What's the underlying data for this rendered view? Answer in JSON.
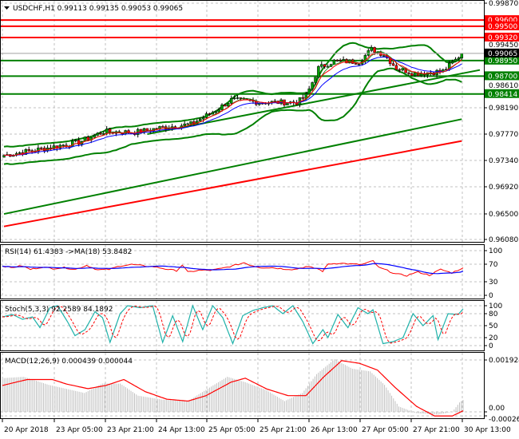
{
  "header": {
    "symbol_line": "USDCHF,H1  0.99113 0.99135 0.99053 0.99065",
    "menu_icon": "triangle-down-icon"
  },
  "colors": {
    "bull": "#00a000",
    "bear": "#ff0000",
    "support": "#008000",
    "resistance": "#ff0000",
    "ma_fast": "#ff0000",
    "ma_slow": "#0000ff",
    "bands": "#008000",
    "stoch_main": "#20b2aa",
    "grid": "#c0c0c0",
    "hist": "#c0c0c0"
  },
  "price_axis": {
    "ticks": [
      "0.99870",
      "0.98190",
      "0.97770",
      "0.97340",
      "0.96920",
      "0.96500",
      "0.96080"
    ],
    "hidden_ticks": [
      "0.99450",
      "0.98610"
    ],
    "current_price": "0.99065"
  },
  "levels": [
    {
      "price": 0.996,
      "label": "0.99600",
      "type": "resistance"
    },
    {
      "price": 0.995,
      "label": "0.99500",
      "type": "resistance"
    },
    {
      "price": 0.9932,
      "label": "0.99320",
      "type": "resistance"
    },
    {
      "price": 0.9895,
      "label": "0.98950",
      "type": "support"
    },
    {
      "price": 0.987,
      "label": "0.98700",
      "type": "support"
    },
    {
      "price": 0.98414,
      "label": "0.98414",
      "type": "support"
    }
  ],
  "time_axis": [
    "20 Apr 2018",
    "23 Apr 05:00",
    "23 Apr 21:00",
    "24 Apr 13:00",
    "25 Apr 05:00",
    "25 Apr 21:00",
    "26 Apr 13:00",
    "27 Apr 05:00",
    "27 Apr 21:00",
    "30 Apr 13:00"
  ],
  "chart_data": [
    {
      "type": "candlestick",
      "title": "USDCHF,H1",
      "bars": 148,
      "ylim": [
        0.9608,
        0.9987
      ],
      "close_anchors": [
        [
          0,
          0.9743
        ],
        [
          14,
          0.9755
        ],
        [
          24,
          0.9764
        ],
        [
          32,
          0.9781
        ],
        [
          42,
          0.978
        ],
        [
          50,
          0.9787
        ],
        [
          60,
          0.9793
        ],
        [
          68,
          0.9815
        ],
        [
          73,
          0.9832
        ],
        [
          83,
          0.9828
        ],
        [
          94,
          0.9828
        ],
        [
          97,
          0.9838
        ],
        [
          99,
          0.986
        ],
        [
          101,
          0.9883
        ],
        [
          106,
          0.9894
        ],
        [
          114,
          0.9893
        ],
        [
          118,
          0.9913
        ],
        [
          122,
          0.9905
        ],
        [
          126,
          0.9883
        ],
        [
          132,
          0.9874
        ],
        [
          141,
          0.9878
        ],
        [
          145,
          0.9896
        ],
        [
          147,
          0.99065
        ]
      ],
      "trendlines": [
        {
          "color": "support",
          "from": [
            0,
            0.9649
          ],
          "to": [
            147,
            0.9801
          ]
        },
        {
          "color": "resistance",
          "from": [
            0,
            0.9629
          ],
          "to": [
            147,
            0.9766
          ]
        },
        {
          "color": "support",
          "from": [
            46,
            0.9777
          ],
          "to": [
            155,
            0.9882
          ]
        }
      ],
      "indicators": [
        "Bollinger Bands(20,2)",
        "MA fast",
        "MA slow"
      ]
    },
    {
      "type": "line",
      "title": "RSI(14) 61.4383  ->MA(18) 53.8482",
      "ticks": [
        "100",
        "70",
        "30",
        "0"
      ],
      "ylim": [
        0,
        100
      ],
      "rsi_anchors": [
        [
          0,
          66
        ],
        [
          3,
          62
        ],
        [
          7,
          66
        ],
        [
          10,
          58
        ],
        [
          14,
          63
        ],
        [
          18,
          60
        ],
        [
          22,
          62
        ],
        [
          26,
          58
        ],
        [
          30,
          67
        ],
        [
          34,
          57
        ],
        [
          38,
          58
        ],
        [
          42,
          66
        ],
        [
          46,
          69
        ],
        [
          50,
          66
        ],
        [
          54,
          64
        ],
        [
          58,
          59
        ],
        [
          62,
          55
        ],
        [
          64,
          68
        ],
        [
          66,
          52
        ],
        [
          70,
          56
        ],
        [
          74,
          56
        ],
        [
          78,
          60
        ],
        [
          82,
          66
        ],
        [
          86,
          73
        ],
        [
          88,
          68
        ],
        [
          92,
          62
        ],
        [
          96,
          62
        ],
        [
          100,
          59
        ],
        [
          104,
          58
        ],
        [
          108,
          64
        ],
        [
          112,
          60
        ],
        [
          114,
          54
        ],
        [
          116,
          70
        ],
        [
          120,
          72
        ],
        [
          124,
          70
        ],
        [
          128,
          69
        ],
        [
          132,
          77
        ],
        [
          134,
          62
        ],
        [
          136,
          58
        ],
        [
          140,
          48
        ],
        [
          144,
          44
        ],
        [
          146,
          49
        ],
        [
          148,
          52
        ],
        [
          152,
          45
        ],
        [
          156,
          58
        ],
        [
          160,
          50
        ],
        [
          164,
          62
        ]
      ],
      "value_rsi": 61.4383,
      "value_ma": 53.8482
    },
    {
      "type": "line",
      "title": "Stoch(5,3,3) 92.2589 84.1892",
      "ticks": [
        "100",
        "80",
        "50",
        "20",
        "0"
      ],
      "ylim": [
        0,
        100
      ],
      "main_anchors": [
        [
          0,
          72
        ],
        [
          4,
          78
        ],
        [
          8,
          66
        ],
        [
          12,
          72
        ],
        [
          15,
          45
        ],
        [
          19,
          95
        ],
        [
          22,
          100
        ],
        [
          26,
          60
        ],
        [
          29,
          25
        ],
        [
          33,
          40
        ],
        [
          37,
          85
        ],
        [
          40,
          70
        ],
        [
          43,
          8
        ],
        [
          47,
          80
        ],
        [
          50,
          100
        ],
        [
          55,
          95
        ],
        [
          60,
          100
        ],
        [
          64,
          8
        ],
        [
          68,
          75
        ],
        [
          72,
          10
        ],
        [
          76,
          100
        ],
        [
          80,
          40
        ],
        [
          84,
          100
        ],
        [
          88,
          70
        ],
        [
          92,
          5
        ],
        [
          96,
          75
        ],
        [
          100,
          88
        ],
        [
          104,
          95
        ],
        [
          108,
          100
        ],
        [
          112,
          80
        ],
        [
          116,
          100
        ],
        [
          120,
          60
        ],
        [
          124,
          5
        ],
        [
          128,
          40
        ],
        [
          130,
          20
        ],
        [
          134,
          78
        ],
        [
          138,
          45
        ],
        [
          142,
          95
        ],
        [
          146,
          80
        ],
        [
          148,
          90
        ],
        [
          152,
          5
        ],
        [
          156,
          10
        ],
        [
          160,
          20
        ],
        [
          164,
          80
        ],
        [
          168,
          50
        ],
        [
          172,
          75
        ],
        [
          174,
          15
        ],
        [
          178,
          80
        ],
        [
          182,
          78
        ],
        [
          184,
          92
        ]
      ],
      "value_main": 92.2589,
      "value_signal": 84.1892
    },
    {
      "type": "bar",
      "title": "MACD(12,26,9) 0.000439 0.000044",
      "ticks": [
        "0.001924",
        "0.00",
        "-0.000264"
      ],
      "ylim": [
        -0.000264,
        0.001924
      ],
      "signal_anchors": [
        [
          0,
          0.00098
        ],
        [
          14,
          0.0012
        ],
        [
          28,
          0.0012
        ],
        [
          36,
          0.00103
        ],
        [
          48,
          0.00086
        ],
        [
          58,
          0.00098
        ],
        [
          68,
          0.0012
        ],
        [
          80,
          0.00075
        ],
        [
          92,
          0.00047
        ],
        [
          104,
          0.0004
        ],
        [
          114,
          0.0006
        ],
        [
          128,
          0.0011
        ],
        [
          136,
          0.00125
        ],
        [
          148,
          0.00085
        ],
        [
          160,
          0.0006
        ],
        [
          170,
          0.0006
        ],
        [
          180,
          0.0013
        ],
        [
          190,
          0.0019
        ],
        [
          200,
          0.0018
        ],
        [
          210,
          0.00155
        ],
        [
          220,
          0.0009
        ],
        [
          232,
          0.0002
        ],
        [
          242,
          -0.00015
        ],
        [
          252,
          -0.00015
        ],
        [
          258,
          4e-05
        ]
      ],
      "hist_anchors": [
        [
          0,
          0.00125
        ],
        [
          12,
          0.0013
        ],
        [
          26,
          0.001
        ],
        [
          36,
          0.00085
        ],
        [
          46,
          0.0007
        ],
        [
          56,
          0.00105
        ],
        [
          66,
          0.00105
        ],
        [
          76,
          0.0006
        ],
        [
          90,
          0.00045
        ],
        [
          104,
          0.0004
        ],
        [
          116,
          0.0009
        ],
        [
          126,
          0.0013
        ],
        [
          136,
          0.0011
        ],
        [
          148,
          0.0008
        ],
        [
          158,
          0.0004
        ],
        [
          168,
          0.0007
        ],
        [
          176,
          0.0014
        ],
        [
          186,
          0.00195
        ],
        [
          196,
          0.0016
        ],
        [
          206,
          0.0015
        ],
        [
          214,
          0.001
        ],
        [
          222,
          0.0002
        ],
        [
          232,
          -5e-05
        ],
        [
          244,
          -0.0001
        ],
        [
          252,
          0.0
        ],
        [
          256,
          0.00035
        ],
        [
          258,
          0.00044
        ]
      ],
      "value_macd": 0.000439,
      "value_signal": 4.4e-05
    }
  ]
}
